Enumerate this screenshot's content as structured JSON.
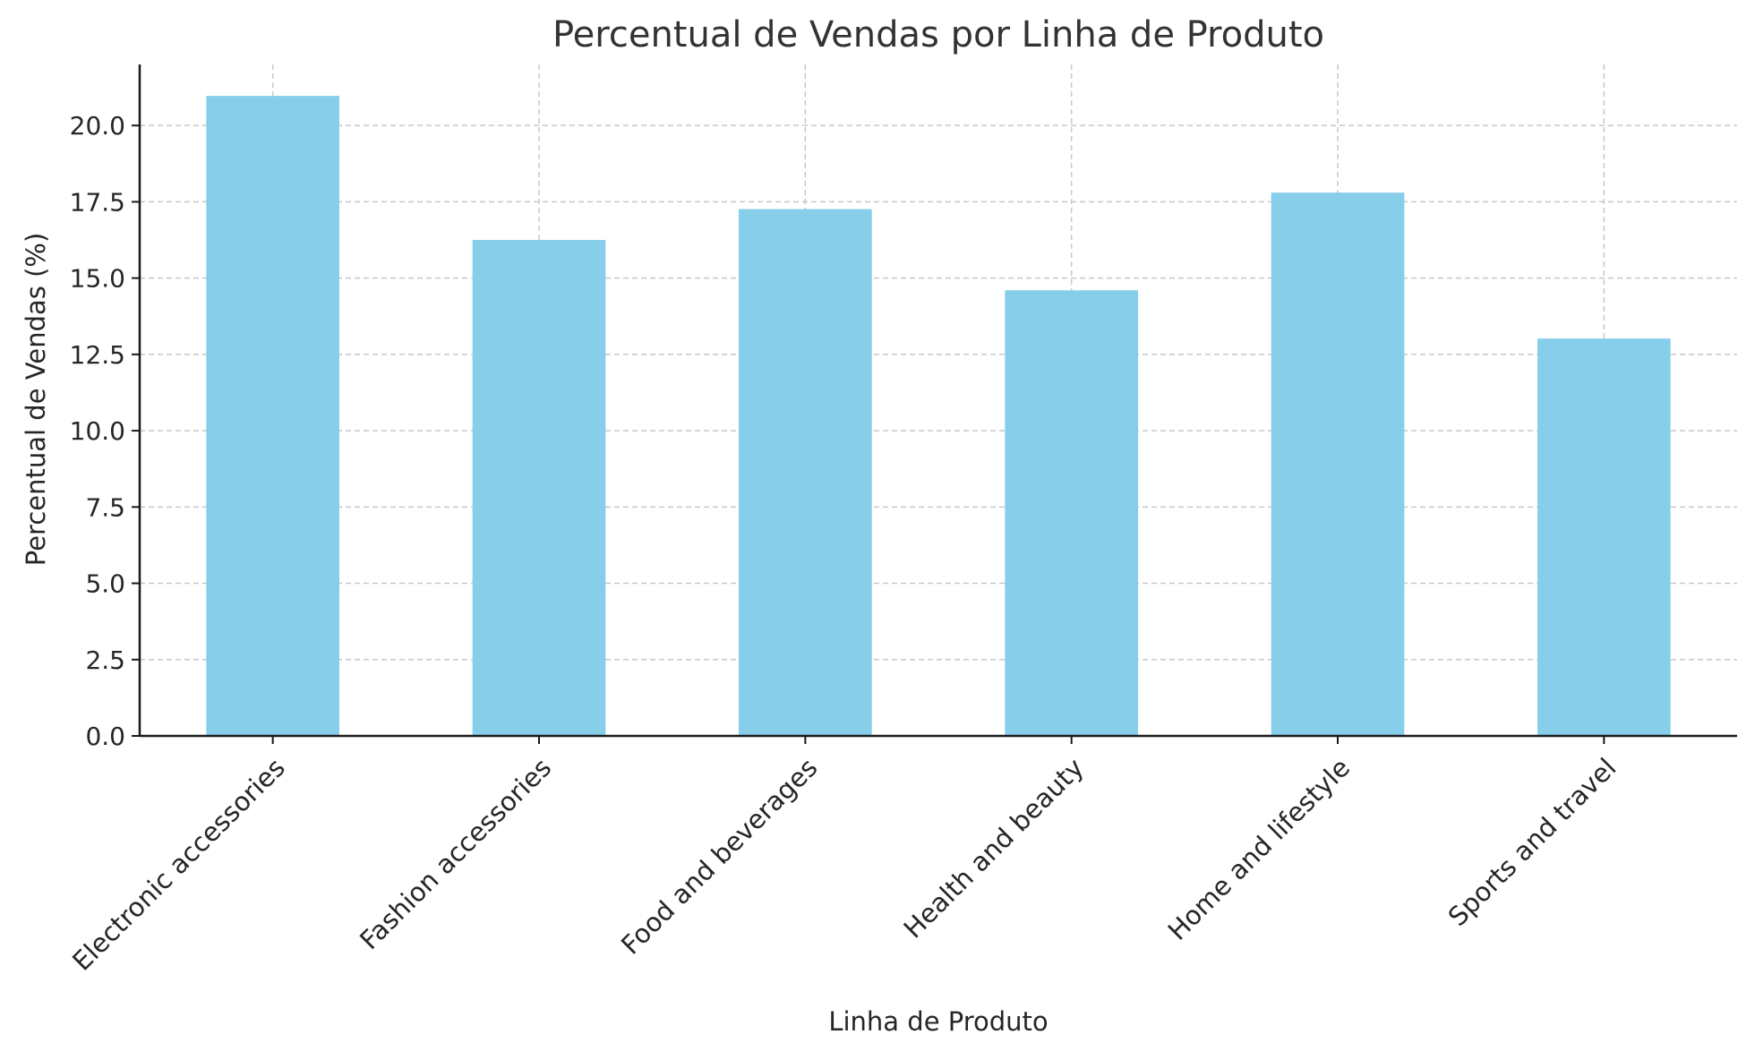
{
  "chart_data": {
    "type": "bar",
    "title": "Percentual de Vendas por Linha de Produto",
    "xlabel": "Linha de Produto",
    "ylabel": "Percentual de Vendas (%)",
    "categories": [
      "Electronic accessories",
      "Fashion accessories",
      "Food and beverages",
      "Health and beauty",
      "Home and lifestyle",
      "Sports and travel"
    ],
    "values": [
      20.97,
      16.25,
      17.26,
      14.6,
      17.8,
      13.02
    ],
    "ylim": [
      0,
      22.0
    ],
    "yticks": [
      0.0,
      2.5,
      5.0,
      7.5,
      10.0,
      12.5,
      15.0,
      17.5,
      20.0
    ],
    "ytick_labels": [
      "0.0",
      "2.5",
      "5.0",
      "7.5",
      "10.0",
      "12.5",
      "15.0",
      "17.5",
      "20.0"
    ],
    "grid": true,
    "colors": {
      "bar": "#87ceeb",
      "grid": "#c8c8c8",
      "axis": "#1a1a1a",
      "text": "#262626",
      "title": "#333333"
    }
  }
}
